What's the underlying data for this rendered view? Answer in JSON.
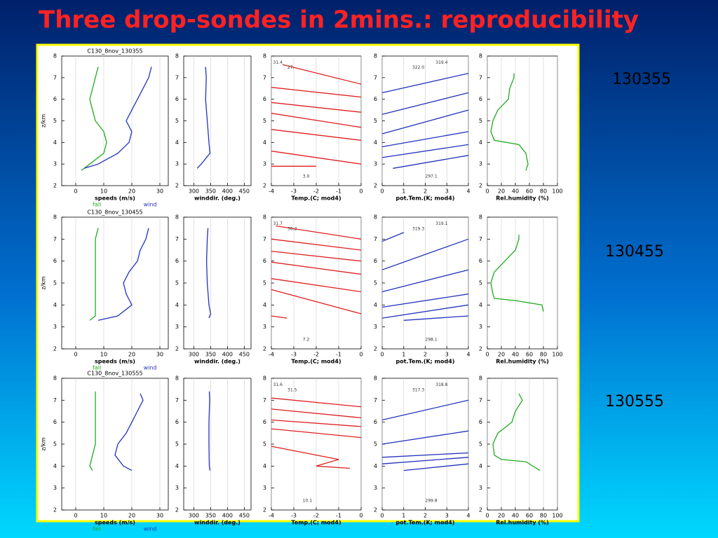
{
  "title": "Three drop-sondes in 2mins.:  reproducibility",
  "sonde_labels": [
    "130355",
    "130455",
    "130555"
  ],
  "chart_data": [
    {
      "type": "line",
      "title": "C130_8nov_130355",
      "xlabel": "speeds (m/s)",
      "ylabel": "z/km",
      "xlim": [
        -5,
        33
      ],
      "xticks": [
        0,
        10,
        20,
        30
      ],
      "ylim": [
        2,
        8
      ],
      "yticks": [
        2,
        3,
        4,
        5,
        6,
        7,
        8
      ],
      "grid": true,
      "series": [
        {
          "name": "fall",
          "color": "#22aa22",
          "x": [
            2,
            5,
            10,
            11,
            10,
            7,
            6,
            5,
            6,
            7,
            8
          ],
          "y": [
            2.7,
            3,
            3.5,
            4,
            4.5,
            5,
            5.5,
            6,
            6.5,
            7,
            7.5
          ]
        },
        {
          "name": "wind",
          "color": "#2233bb",
          "x": [
            3,
            8,
            15,
            19,
            20,
            18,
            20,
            22,
            24,
            26,
            27
          ],
          "y": [
            2.8,
            3,
            3.5,
            4,
            4.5,
            5,
            5.5,
            6,
            6.5,
            7,
            7.5
          ]
        }
      ]
    },
    {
      "type": "line",
      "xlabel": "winddir. (deg.)",
      "xlim": [
        270,
        470
      ],
      "xticks": [
        300,
        350,
        400,
        450
      ],
      "ylim": [
        2,
        8
      ],
      "yticks": [
        2,
        3,
        4,
        5,
        6,
        7,
        8
      ],
      "grid": true,
      "series": [
        {
          "color": "#2233bb",
          "x": [
            310,
            322,
            348,
            345,
            340,
            335,
            337,
            335
          ],
          "y": [
            2.8,
            3,
            3.5,
            4,
            5,
            6,
            7,
            7.5
          ]
        }
      ]
    },
    {
      "type": "line",
      "xlabel": "Temp.(C; mod4)",
      "xlim": [
        -4,
        0
      ],
      "xticks": [
        -4,
        -3,
        -2,
        -1,
        0
      ],
      "ylim": [
        2,
        8
      ],
      "yticks": [
        2,
        3,
        4,
        5,
        6,
        7,
        8
      ],
      "grid": true,
      "annotations": [
        "31.4",
        "27.",
        "3.0"
      ],
      "series": [
        {
          "color": "#dd2020",
          "x": [
            -3.5,
            0,
            null,
            -4,
            0,
            null,
            -4,
            0,
            null,
            -4,
            0,
            null,
            -4,
            0,
            null,
            -4,
            0,
            null,
            -4,
            -2
          ],
          "y": [
            7.6,
            6.7,
            null,
            6.55,
            6.1,
            null,
            5.85,
            5.4,
            null,
            5.35,
            4.7,
            null,
            4.6,
            4.1,
            null,
            3.6,
            3.0,
            null,
            2.9,
            2.9
          ]
        }
      ]
    },
    {
      "type": "line",
      "xlabel": "pot.Tem.(K; mod4)",
      "xlim": [
        0,
        4
      ],
      "xticks": [
        0,
        1,
        2,
        3,
        4
      ],
      "ylim": [
        2,
        8
      ],
      "yticks": [
        2,
        3,
        4,
        5,
        6,
        7,
        8
      ],
      "grid": true,
      "annotations": [
        "322.0",
        "319.4",
        "297.1"
      ],
      "series": [
        {
          "color": "#2233bb",
          "x": [
            0,
            4,
            null,
            0,
            4,
            null,
            0,
            4,
            null,
            0,
            4,
            null,
            0,
            4,
            null,
            0.5,
            4
          ],
          "y": [
            6.3,
            7.2,
            null,
            5.3,
            6.3,
            null,
            4.4,
            5.5,
            null,
            3.8,
            4.5,
            null,
            3.3,
            3.9,
            null,
            2.8,
            3.4
          ]
        }
      ]
    },
    {
      "type": "line",
      "xlabel": "Rel.humidity (%)",
      "xlim": [
        0,
        100
      ],
      "xticks": [
        0,
        20,
        40,
        60,
        80,
        100
      ],
      "ylim": [
        2,
        8
      ],
      "yticks": [
        2,
        3,
        4,
        5,
        6,
        7,
        8
      ],
      "grid": true,
      "series": [
        {
          "color": "#22aa22",
          "x": [
            55,
            58,
            55,
            45,
            10,
            5,
            8,
            15,
            30,
            32,
            38,
            38
          ],
          "y": [
            2.7,
            3,
            3.5,
            3.9,
            4.1,
            4.5,
            5,
            5.5,
            6,
            6.5,
            7,
            7.2
          ]
        }
      ]
    },
    {
      "type": "line",
      "title": "C130_8nov_130455",
      "xlabel": "speeds (m/s)",
      "ylabel": "z/km",
      "xlim": [
        -5,
        33
      ],
      "xticks": [
        0,
        10,
        20,
        30
      ],
      "ylim": [
        2,
        8
      ],
      "yticks": [
        2,
        3,
        4,
        5,
        6,
        7,
        8
      ],
      "grid": true,
      "series": [
        {
          "name": "fall",
          "color": "#22aa22",
          "x": [
            5,
            7,
            7,
            7,
            7,
            7,
            7,
            7,
            7,
            8
          ],
          "y": [
            3.3,
            3.5,
            4,
            4.5,
            5,
            5.5,
            6,
            6.5,
            7,
            7.5
          ]
        },
        {
          "name": "wind",
          "color": "#2233bb",
          "x": [
            8,
            15,
            20,
            18,
            17,
            19,
            22,
            23,
            25,
            26
          ],
          "y": [
            3.3,
            3.5,
            4,
            4.5,
            5,
            5.5,
            6,
            6.5,
            7,
            7.5
          ]
        }
      ]
    },
    {
      "type": "line",
      "xlabel": "winddir. (deg.)",
      "xlim": [
        270,
        470
      ],
      "xticks": [
        300,
        350,
        400,
        450
      ],
      "ylim": [
        2,
        8
      ],
      "yticks": [
        2,
        3,
        4,
        5,
        6,
        7,
        8
      ],
      "grid": true,
      "series": [
        {
          "color": "#2233bb",
          "x": [
            345,
            350,
            345,
            340,
            338,
            340,
            342
          ],
          "y": [
            3.4,
            3.6,
            4,
            5,
            6,
            7,
            7.5
          ]
        }
      ]
    },
    {
      "type": "line",
      "xlabel": "Temp.(C; mod4)",
      "xlim": [
        -4,
        0
      ],
      "xticks": [
        -4,
        -3,
        -2,
        -1,
        0
      ],
      "ylim": [
        2,
        8
      ],
      "yticks": [
        2,
        3,
        4,
        5,
        6,
        7,
        8
      ],
      "grid": true,
      "annotations": [
        "31.7",
        "30.2",
        "7.2"
      ],
      "series": [
        {
          "color": "#dd2020",
          "x": [
            -3.8,
            0,
            null,
            -4,
            0,
            null,
            -4,
            0,
            null,
            -4,
            0,
            null,
            -4,
            0,
            null,
            -4,
            0,
            null,
            -4,
            -3.3
          ],
          "y": [
            7.6,
            7.0,
            null,
            7.0,
            6.5,
            null,
            6.45,
            6.0,
            null,
            5.95,
            5.4,
            null,
            5.2,
            4.6,
            null,
            4.7,
            3.6,
            null,
            3.5,
            3.4
          ]
        }
      ]
    },
    {
      "type": "line",
      "xlabel": "pot.Tem.(K; mod4)",
      "xlim": [
        0,
        4
      ],
      "xticks": [
        0,
        1,
        2,
        3,
        4
      ],
      "ylim": [
        2,
        8
      ],
      "yticks": [
        2,
        3,
        4,
        5,
        6,
        7,
        8
      ],
      "grid": true,
      "annotations": [
        "319.3",
        "319.1",
        "298.1"
      ],
      "series": [
        {
          "color": "#2233bb",
          "x": [
            0,
            1,
            null,
            0,
            4,
            null,
            0,
            4,
            null,
            0,
            4,
            null,
            0,
            4,
            null,
            1,
            4
          ],
          "y": [
            6.9,
            7.3,
            null,
            5.6,
            7.0,
            null,
            4.6,
            5.6,
            null,
            3.9,
            4.5,
            null,
            3.4,
            4.0,
            null,
            3.3,
            3.5
          ]
        }
      ]
    },
    {
      "type": "line",
      "xlabel": "Rel.humidity (%)",
      "xlim": [
        0,
        100
      ],
      "xticks": [
        0,
        20,
        40,
        60,
        80,
        100
      ],
      "ylim": [
        2,
        8
      ],
      "yticks": [
        2,
        3,
        4,
        5,
        6,
        7,
        8
      ],
      "grid": true,
      "series": [
        {
          "color": "#22aa22",
          "x": [
            80,
            78,
            40,
            10,
            8,
            5,
            10,
            25,
            40,
            45,
            45
          ],
          "y": [
            3.7,
            4,
            4.2,
            4.3,
            4.5,
            5,
            5.5,
            6,
            6.5,
            7,
            7.2
          ]
        }
      ]
    },
    {
      "type": "line",
      "title": "C130_8nov_130555",
      "xlabel": "speeds (m/s)",
      "ylabel": "z/km",
      "xlim": [
        -5,
        33
      ],
      "xticks": [
        0,
        10,
        20,
        30
      ],
      "ylim": [
        2,
        8
      ],
      "yticks": [
        2,
        3,
        4,
        5,
        6,
        7,
        8
      ],
      "grid": true,
      "series": [
        {
          "name": "fall",
          "color": "#22aa22",
          "x": [
            6,
            5,
            6,
            7,
            7,
            7,
            7,
            7,
            7
          ],
          "y": [
            3.8,
            4,
            4.5,
            5,
            5.5,
            6,
            6.5,
            7,
            7.4
          ]
        },
        {
          "name": "wind",
          "color": "#2233bb",
          "x": [
            20,
            17,
            14,
            15,
            18,
            20,
            22,
            24,
            23
          ],
          "y": [
            3.8,
            4,
            4.5,
            5,
            5.5,
            6,
            6.5,
            7,
            7.3
          ]
        }
      ]
    },
    {
      "type": "line",
      "xlabel": "winddir. (deg.)",
      "xlim": [
        270,
        470
      ],
      "xticks": [
        300,
        350,
        400,
        450
      ],
      "ylim": [
        2,
        8
      ],
      "yticks": [
        2,
        3,
        4,
        5,
        6,
        7,
        8
      ],
      "grid": true,
      "series": [
        {
          "color": "#2233bb",
          "x": [
            348,
            346,
            345,
            345,
            347,
            346
          ],
          "y": [
            3.8,
            4,
            5,
            6,
            7,
            7.4
          ]
        }
      ]
    },
    {
      "type": "line",
      "xlabel": "Temp.(C; mod4)",
      "xlim": [
        -4,
        0
      ],
      "xticks": [
        -4,
        -3,
        -2,
        -1,
        0
      ],
      "ylim": [
        2,
        8
      ],
      "yticks": [
        2,
        3,
        4,
        5,
        6,
        7,
        8
      ],
      "grid": true,
      "annotations": [
        "31.6",
        "31.5",
        "10.1"
      ],
      "series": [
        {
          "color": "#dd2020",
          "x": [
            -4,
            0,
            null,
            -4,
            0,
            null,
            -4,
            0,
            null,
            -4,
            0,
            null,
            -4,
            -1,
            -2,
            -0.5
          ],
          "y": [
            7.1,
            6.7,
            null,
            6.6,
            6.2,
            null,
            6.1,
            5.8,
            null,
            5.7,
            5.3,
            null,
            4.9,
            4.3,
            4.0,
            3.9
          ]
        }
      ]
    },
    {
      "type": "line",
      "xlabel": "pot.Tem.(K; mod4)",
      "xlim": [
        0,
        4
      ],
      "xticks": [
        0,
        1,
        2,
        3,
        4
      ],
      "ylim": [
        2,
        8
      ],
      "yticks": [
        2,
        3,
        4,
        5,
        6,
        7,
        8
      ],
      "grid": true,
      "annotations": [
        "317.3",
        "318.8",
        "299.8"
      ],
      "series": [
        {
          "color": "#2233bb",
          "x": [
            0,
            4,
            null,
            0,
            4,
            null,
            0,
            4,
            null,
            0,
            4,
            null,
            1,
            4
          ],
          "y": [
            6.1,
            7.0,
            null,
            5.0,
            5.6,
            null,
            4.4,
            4.6,
            null,
            4.1,
            4.4,
            null,
            3.8,
            4.1
          ]
        }
      ]
    },
    {
      "type": "line",
      "xlabel": "Rel.humidity (%)",
      "xlim": [
        0,
        100
      ],
      "xticks": [
        0,
        20,
        40,
        60,
        80,
        100
      ],
      "ylim": [
        2,
        8
      ],
      "yticks": [
        2,
        3,
        4,
        5,
        6,
        7,
        8
      ],
      "grid": true,
      "series": [
        {
          "color": "#22aa22",
          "x": [
            75,
            55,
            20,
            10,
            8,
            15,
            35,
            40,
            50,
            45
          ],
          "y": [
            3.8,
            4.2,
            4.3,
            4.5,
            5,
            5.5,
            6,
            6.5,
            7,
            7.3
          ]
        }
      ]
    }
  ]
}
